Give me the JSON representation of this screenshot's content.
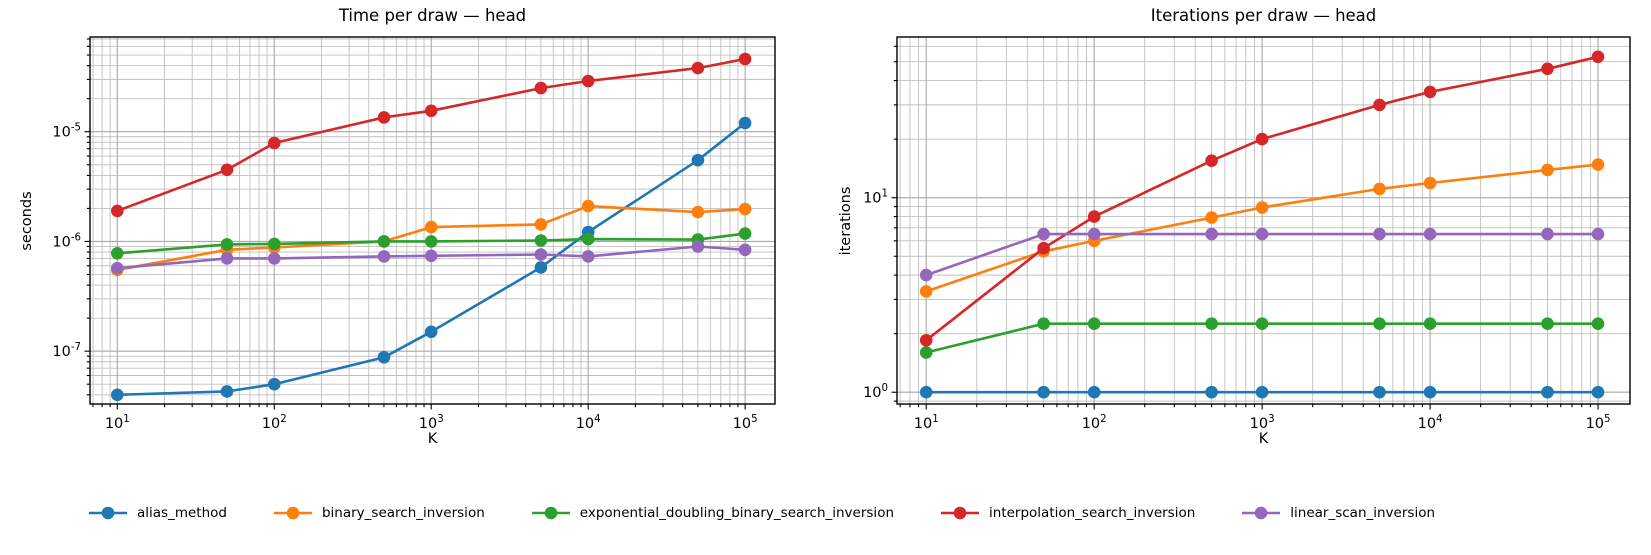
{
  "figure": {
    "background": "#ffffff",
    "text_color": "#000000",
    "grid_major_color": "#a8a8a8",
    "grid_minor_color": "#bfbfbf",
    "series_colors": {
      "alias_method": "#1f77b4",
      "binary_search_inversion": "#ff7f0e",
      "exponential_doubling_binary_search_inversion": "#2ca02c",
      "interpolation_search_inversion": "#d62728",
      "linear_scan_inversion": "#9467bd"
    }
  },
  "legend": {
    "items": [
      {
        "label": "alias_method",
        "color": "#1f77b4"
      },
      {
        "label": "binary_search_inversion",
        "color": "#ff7f0e"
      },
      {
        "label": "exponential_doubling_binary_search_inversion",
        "color": "#2ca02c"
      },
      {
        "label": "interpolation_search_inversion",
        "color": "#d62728"
      },
      {
        "label": "linear_scan_inversion",
        "color": "#9467bd"
      }
    ]
  },
  "chart_data": [
    {
      "id": "time-per-draw",
      "type": "line",
      "title": "Time per draw — head",
      "xlabel": "K",
      "ylabel": "seconds",
      "xscale": "log",
      "yscale": "log",
      "grid": "both",
      "legend_position": "lower center (figure)",
      "x": [
        10,
        50,
        100,
        500,
        1000,
        5000,
        10000,
        50000,
        100000
      ],
      "x_tick_labels": [
        "10^1",
        "10^2",
        "10^3",
        "10^4",
        "10^5"
      ],
      "y_tick_labels": [
        "10^-7",
        "10^-6",
        "10^-5"
      ],
      "xlim": [
        6.7,
        155000
      ],
      "ylim": [
        3.3e-08,
        7.3e-05
      ],
      "series": [
        {
          "name": "alias_method",
          "color": "#1f77b4",
          "values": [
            4e-08,
            4.3e-08,
            5e-08,
            8.8e-08,
            1.5e-07,
            5.8e-07,
            1.22e-06,
            5.5e-06,
            1.2e-05
          ]
        },
        {
          "name": "binary_search_inversion",
          "color": "#ff7f0e",
          "values": [
            5.5e-07,
            8.4e-07,
            8.8e-07,
            1e-06,
            1.35e-06,
            1.43e-06,
            2.1e-06,
            1.85e-06,
            1.97e-06
          ]
        },
        {
          "name": "exponential_doubling_binary_search_inversion",
          "color": "#2ca02c",
          "values": [
            7.8e-07,
            9.4e-07,
            9.5e-07,
            1e-06,
            1e-06,
            1.02e-06,
            1.05e-06,
            1.04e-06,
            1.18e-06
          ]
        },
        {
          "name": "interpolation_search_inversion",
          "color": "#d62728",
          "values": [
            1.9e-06,
            4.5e-06,
            7.9e-06,
            1.35e-05,
            1.55e-05,
            2.5e-05,
            2.9e-05,
            3.8e-05,
            4.6e-05
          ]
        },
        {
          "name": "linear_scan_inversion",
          "color": "#9467bd",
          "values": [
            5.7e-07,
            7e-07,
            7e-07,
            7.3e-07,
            7.4e-07,
            7.6e-07,
            7.3e-07,
            9e-07,
            8.4e-07
          ]
        }
      ]
    },
    {
      "id": "iterations-per-draw",
      "type": "line",
      "title": "Iterations per draw — head",
      "xlabel": "K",
      "ylabel": "iterations",
      "xscale": "log",
      "yscale": "log",
      "grid": "both",
      "legend_position": "lower center (figure)",
      "x": [
        10,
        50,
        100,
        500,
        1000,
        5000,
        10000,
        50000,
        100000
      ],
      "x_tick_labels": [
        "10^1",
        "10^2",
        "10^3",
        "10^4",
        "10^5"
      ],
      "y_tick_labels": [
        "10^0",
        "10^1"
      ],
      "xlim": [
        6.7,
        155000
      ],
      "ylim": [
        0.87,
        67
      ],
      "series": [
        {
          "name": "alias_method",
          "color": "#1f77b4",
          "values": [
            1.0,
            1.0,
            1.0,
            1.0,
            1.0,
            1.0,
            1.0,
            1.0,
            1.0
          ]
        },
        {
          "name": "binary_search_inversion",
          "color": "#ff7f0e",
          "values": [
            3.3,
            5.3,
            6.0,
            7.9,
            8.9,
            11.1,
            11.9,
            13.9,
            14.8
          ]
        },
        {
          "name": "exponential_doubling_binary_search_inversion",
          "color": "#2ca02c",
          "values": [
            1.6,
            2.25,
            2.25,
            2.25,
            2.25,
            2.25,
            2.25,
            2.25,
            2.25
          ]
        },
        {
          "name": "interpolation_search_inversion",
          "color": "#d62728",
          "values": [
            1.85,
            5.5,
            8.0,
            15.5,
            20,
            30,
            35,
            46,
            53
          ]
        },
        {
          "name": "linear_scan_inversion",
          "color": "#9467bd",
          "values": [
            4.0,
            6.5,
            6.5,
            6.5,
            6.5,
            6.5,
            6.5,
            6.5,
            6.5
          ]
        }
      ]
    }
  ]
}
